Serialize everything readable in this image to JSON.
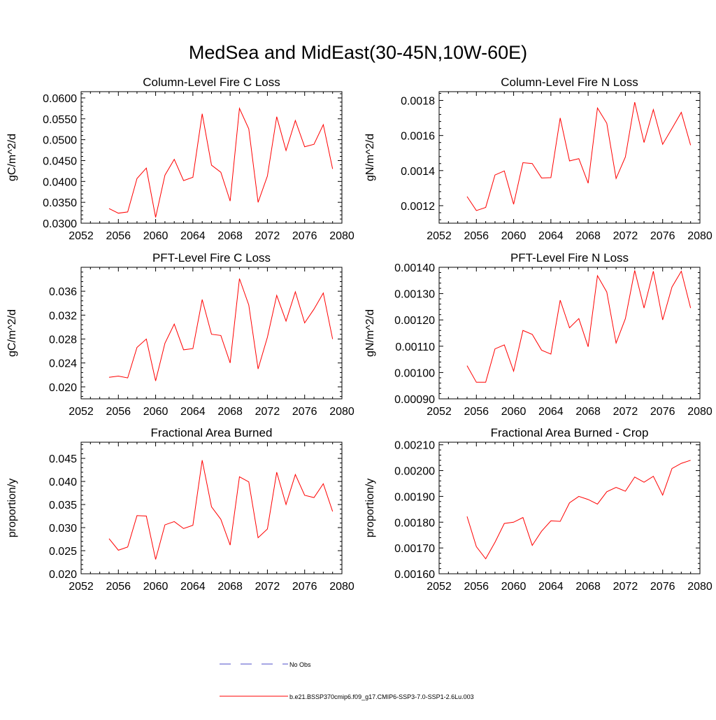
{
  "title": "MedSea and MidEast(30-45N,10W-60E)",
  "colors": {
    "series": "#ff0000",
    "obs": "#4c4cc8",
    "axis": "#000000"
  },
  "legend": {
    "obs_label": "No Obs",
    "model_label": "b.e21.BSSP370cmip6.f09_g17.CMIP6-SSP3-7.0-SSP1-2.6Lu.003"
  },
  "chart_data": [
    {
      "type": "line",
      "title": "Column-Level Fire C Loss",
      "ylabel": "gC/m^2/d",
      "xlim": [
        2052,
        2080
      ],
      "ylim": [
        0.03,
        0.0615
      ],
      "xticks": [
        "2052",
        "2056",
        "2060",
        "2064",
        "2068",
        "2072",
        "2076",
        "2080"
      ],
      "yticks": [
        0.03,
        0.035,
        0.04,
        0.045,
        0.05,
        0.055,
        0.06
      ],
      "ytick_labels": [
        "0.0300",
        "0.0350",
        "0.0400",
        "0.0450",
        "0.0500",
        "0.0550",
        "0.0600"
      ],
      "series": [
        {
          "x": [
            2055,
            2056,
            2057,
            2058,
            2059,
            2060,
            2061,
            2062,
            2063,
            2064,
            2065,
            2066,
            2067,
            2068,
            2069,
            2070,
            2071,
            2072,
            2073,
            2074,
            2075,
            2076,
            2077,
            2078,
            2079
          ],
          "values": [
            0.0335,
            0.0324,
            0.0327,
            0.0407,
            0.0432,
            0.0314,
            0.0415,
            0.0453,
            0.0402,
            0.041,
            0.0562,
            0.0439,
            0.0422,
            0.0353,
            0.0575,
            0.0526,
            0.035,
            0.0413,
            0.0555,
            0.0474,
            0.0546,
            0.0483,
            0.0489,
            0.0536,
            0.043
          ]
        }
      ]
    },
    {
      "type": "line",
      "title": "Column-Level Fire N Loss",
      "ylabel": "gN/m^2/d",
      "xlim": [
        2052,
        2080
      ],
      "ylim": [
        0.0011,
        0.00185
      ],
      "xticks": [
        "2052",
        "2056",
        "2060",
        "2064",
        "2068",
        "2072",
        "2076",
        "2080"
      ],
      "yticks": [
        0.0012,
        0.0014,
        0.0016,
        0.0018
      ],
      "ytick_labels": [
        "0.0012",
        "0.0014",
        "0.0016",
        "0.0018"
      ],
      "series": [
        {
          "x": [
            2055,
            2056,
            2057,
            2058,
            2059,
            2060,
            2061,
            2062,
            2063,
            2064,
            2065,
            2066,
            2067,
            2068,
            2069,
            2070,
            2071,
            2072,
            2073,
            2074,
            2075,
            2076,
            2077,
            2078,
            2079
          ],
          "values": [
            0.001252,
            0.001172,
            0.00119,
            0.001375,
            0.001398,
            0.001208,
            0.001445,
            0.00144,
            0.001358,
            0.00136,
            0.0017,
            0.001455,
            0.001468,
            0.001328,
            0.001757,
            0.00167,
            0.001355,
            0.001478,
            0.00179,
            0.00156,
            0.001748,
            0.00155,
            0.00164,
            0.001732,
            0.001545
          ]
        }
      ]
    },
    {
      "type": "line",
      "title": "PFT-Level Fire C Loss",
      "ylabel": "gC/m^2/d",
      "xlim": [
        2052,
        2080
      ],
      "ylim": [
        0.018,
        0.04
      ],
      "xticks": [
        "2052",
        "2056",
        "2060",
        "2064",
        "2068",
        "2072",
        "2076",
        "2080"
      ],
      "yticks": [
        0.02,
        0.024,
        0.028,
        0.032,
        0.036
      ],
      "ytick_labels": [
        "0.020",
        "0.024",
        "0.028",
        "0.032",
        "0.036"
      ],
      "series": [
        {
          "x": [
            2055,
            2056,
            2057,
            2058,
            2059,
            2060,
            2061,
            2062,
            2063,
            2064,
            2065,
            2066,
            2067,
            2068,
            2069,
            2070,
            2071,
            2072,
            2073,
            2074,
            2075,
            2076,
            2077,
            2078,
            2079
          ],
          "values": [
            0.0216,
            0.0218,
            0.0215,
            0.0266,
            0.028,
            0.021,
            0.0273,
            0.0305,
            0.0262,
            0.0264,
            0.0346,
            0.0288,
            0.0286,
            0.024,
            0.0381,
            0.0337,
            0.023,
            0.0283,
            0.0353,
            0.031,
            0.0359,
            0.0307,
            0.033,
            0.0357,
            0.028
          ]
        }
      ]
    },
    {
      "type": "line",
      "title": "PFT-Level Fire N Loss",
      "ylabel": "gN/m^2/d",
      "xlim": [
        2052,
        2080
      ],
      "ylim": [
        0.0009,
        0.0014
      ],
      "xticks": [
        "2052",
        "2056",
        "2060",
        "2064",
        "2068",
        "2072",
        "2076",
        "2080"
      ],
      "yticks": [
        0.0009,
        0.001,
        0.0011,
        0.0012,
        0.0013,
        0.0014
      ],
      "ytick_labels": [
        "0.00090",
        "0.00100",
        "0.00110",
        "0.00120",
        "0.00130",
        "0.00140"
      ],
      "series": [
        {
          "x": [
            2055,
            2056,
            2057,
            2058,
            2059,
            2060,
            2061,
            2062,
            2063,
            2064,
            2065,
            2066,
            2067,
            2068,
            2069,
            2070,
            2071,
            2072,
            2073,
            2074,
            2075,
            2076,
            2077,
            2078,
            2079
          ],
          "values": [
            0.001026,
            0.000963,
            0.000963,
            0.00109,
            0.001105,
            0.001005,
            0.00116,
            0.001145,
            0.001085,
            0.00107,
            0.001275,
            0.00117,
            0.001205,
            0.001098,
            0.001368,
            0.001306,
            0.001112,
            0.001205,
            0.001388,
            0.001245,
            0.001385,
            0.0012,
            0.001325,
            0.001385,
            0.001245
          ]
        }
      ]
    },
    {
      "type": "line",
      "title": "Fractional Area Burned",
      "ylabel": "proportion/y",
      "xlim": [
        2052,
        2080
      ],
      "ylim": [
        0.02,
        0.0485
      ],
      "xticks": [
        "2052",
        "2056",
        "2060",
        "2064",
        "2068",
        "2072",
        "2076",
        "2080"
      ],
      "yticks": [
        0.02,
        0.025,
        0.03,
        0.035,
        0.04,
        0.045
      ],
      "ytick_labels": [
        "0.020",
        "0.025",
        "0.030",
        "0.035",
        "0.040",
        "0.045"
      ],
      "series": [
        {
          "x": [
            2055,
            2056,
            2057,
            2058,
            2059,
            2060,
            2061,
            2062,
            2063,
            2064,
            2065,
            2066,
            2067,
            2068,
            2069,
            2070,
            2071,
            2072,
            2073,
            2074,
            2075,
            2076,
            2077,
            2078,
            2079
          ],
          "values": [
            0.0276,
            0.0251,
            0.0258,
            0.0326,
            0.0325,
            0.0231,
            0.0306,
            0.0313,
            0.0298,
            0.0305,
            0.0446,
            0.0345,
            0.0318,
            0.0262,
            0.041,
            0.0399,
            0.0278,
            0.0297,
            0.042,
            0.035,
            0.0415,
            0.037,
            0.0365,
            0.0395,
            0.0335
          ]
        }
      ]
    },
    {
      "type": "line",
      "title": "Fractional Area Burned - Crop",
      "ylabel": "proportion/y",
      "xlim": [
        2052,
        2080
      ],
      "ylim": [
        0.0016,
        0.00211
      ],
      "xticks": [
        "2052",
        "2056",
        "2060",
        "2064",
        "2068",
        "2072",
        "2076",
        "2080"
      ],
      "yticks": [
        0.0016,
        0.0017,
        0.0018,
        0.0019,
        0.002,
        0.0021
      ],
      "ytick_labels": [
        "0.00160",
        "0.00170",
        "0.00180",
        "0.00190",
        "0.00200",
        "0.00210"
      ],
      "series": [
        {
          "x": [
            2055,
            2056,
            2057,
            2058,
            2059,
            2060,
            2061,
            2062,
            2063,
            2064,
            2065,
            2066,
            2067,
            2068,
            2069,
            2070,
            2071,
            2072,
            2073,
            2074,
            2075,
            2076,
            2077,
            2078,
            2079
          ],
          "values": [
            0.001822,
            0.001705,
            0.001658,
            0.001722,
            0.001795,
            0.0018,
            0.001818,
            0.00171,
            0.001765,
            0.001805,
            0.001803,
            0.001875,
            0.0019,
            0.001888,
            0.00187,
            0.001918,
            0.001935,
            0.00192,
            0.001975,
            0.001955,
            0.001978,
            0.001905,
            0.002008,
            0.002028,
            0.00204
          ]
        }
      ]
    }
  ]
}
